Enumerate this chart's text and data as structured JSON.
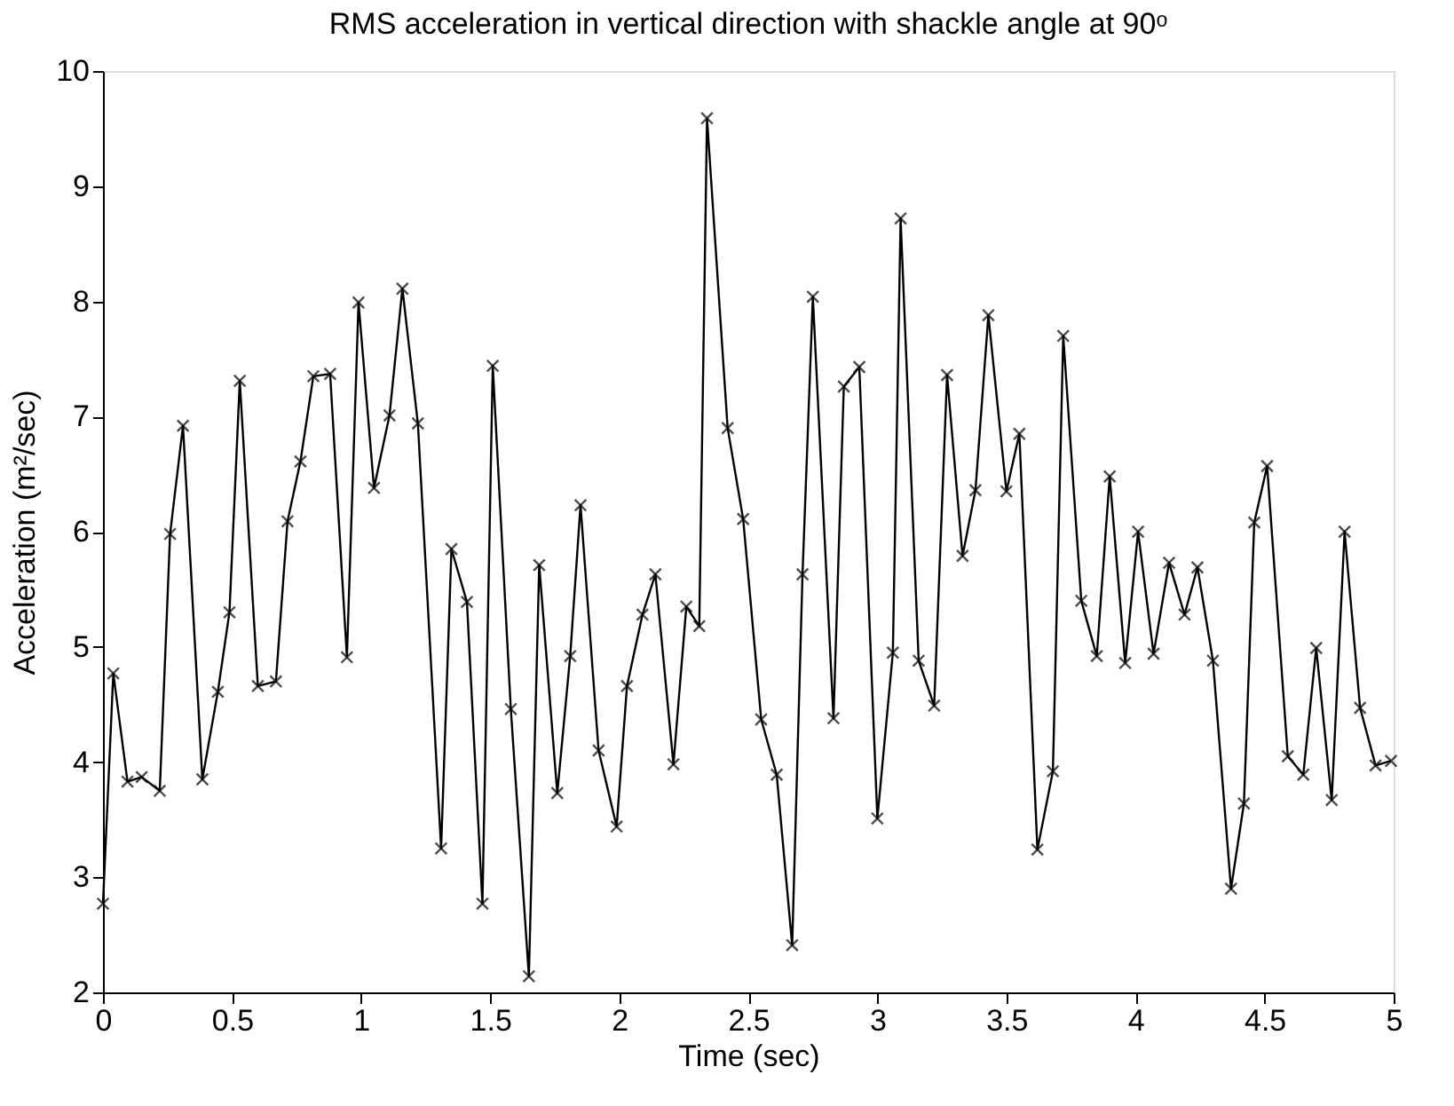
{
  "chart_data": {
    "type": "line",
    "title": "RMS acceleration in vertical direction with shackle angle at 90ᵒ",
    "xlabel": "Time (sec)",
    "ylabel": "Acceleration (m²/sec)",
    "x": [
      0,
      0.04,
      0.095,
      0.15,
      0.22,
      0.26,
      0.31,
      0.385,
      0.445,
      0.49,
      0.53,
      0.6,
      0.67,
      0.715,
      0.765,
      0.815,
      0.88,
      0.945,
      0.99,
      1.05,
      1.11,
      1.16,
      1.22,
      1.31,
      1.35,
      1.41,
      1.47,
      1.51,
      1.58,
      1.65,
      1.69,
      1.76,
      1.81,
      1.85,
      1.92,
      1.99,
      2.03,
      2.09,
      2.14,
      2.21,
      2.26,
      2.31,
      2.34,
      2.42,
      2.48,
      2.55,
      2.61,
      2.67,
      2.71,
      2.75,
      2.83,
      2.87,
      2.93,
      3.0,
      3.06,
      3.09,
      3.16,
      3.22,
      3.27,
      3.33,
      3.38,
      3.43,
      3.5,
      3.55,
      3.62,
      3.68,
      3.72,
      3.79,
      3.85,
      3.9,
      3.96,
      4.01,
      4.07,
      4.13,
      4.19,
      4.24,
      4.3,
      4.37,
      4.42,
      4.46,
      4.51,
      4.59,
      4.65,
      4.7,
      4.76,
      4.81,
      4.87,
      4.93,
      4.99
    ],
    "series": [
      {
        "color": "#000000",
        "values": [
          2.77,
          4.77,
          3.83,
          3.87,
          3.75,
          5.98,
          6.92,
          3.85,
          4.61,
          5.3,
          7.31,
          4.66,
          4.7,
          6.09,
          6.61,
          7.35,
          7.37,
          4.91,
          7.99,
          6.38,
          7.01,
          8.11,
          6.94,
          3.25,
          5.85,
          5.39,
          2.77,
          7.44,
          4.46,
          2.14,
          5.71,
          3.73,
          4.92,
          6.23,
          4.1,
          3.44,
          4.66,
          5.28,
          5.63,
          3.98,
          5.35,
          5.18,
          9.59,
          6.9,
          6.11,
          4.37,
          3.89,
          2.41,
          5.63,
          8.04,
          4.38,
          7.26,
          7.43,
          3.51,
          4.95,
          8.72,
          4.88,
          4.49,
          7.36,
          5.79,
          6.36,
          7.88,
          6.35,
          6.85,
          3.24,
          3.92,
          7.7,
          5.4,
          4.92,
          6.48,
          4.86,
          6.0,
          4.94,
          5.73,
          5.28,
          5.69,
          4.88,
          2.9,
          3.64,
          6.08,
          6.57,
          4.05,
          3.89,
          4.99,
          3.67,
          6.0,
          4.47,
          3.97,
          4.01
        ]
      }
    ],
    "xlim": [
      0,
      5
    ],
    "xticks": [
      0,
      0.5,
      1,
      1.5,
      2,
      2.5,
      3,
      3.5,
      4,
      4.5,
      5
    ],
    "ylim": [
      2,
      10
    ],
    "yticks": [
      2,
      3,
      4,
      5,
      6,
      7,
      8,
      9,
      10
    ],
    "marker": "cross",
    "line_style": "solid",
    "grid": false
  }
}
